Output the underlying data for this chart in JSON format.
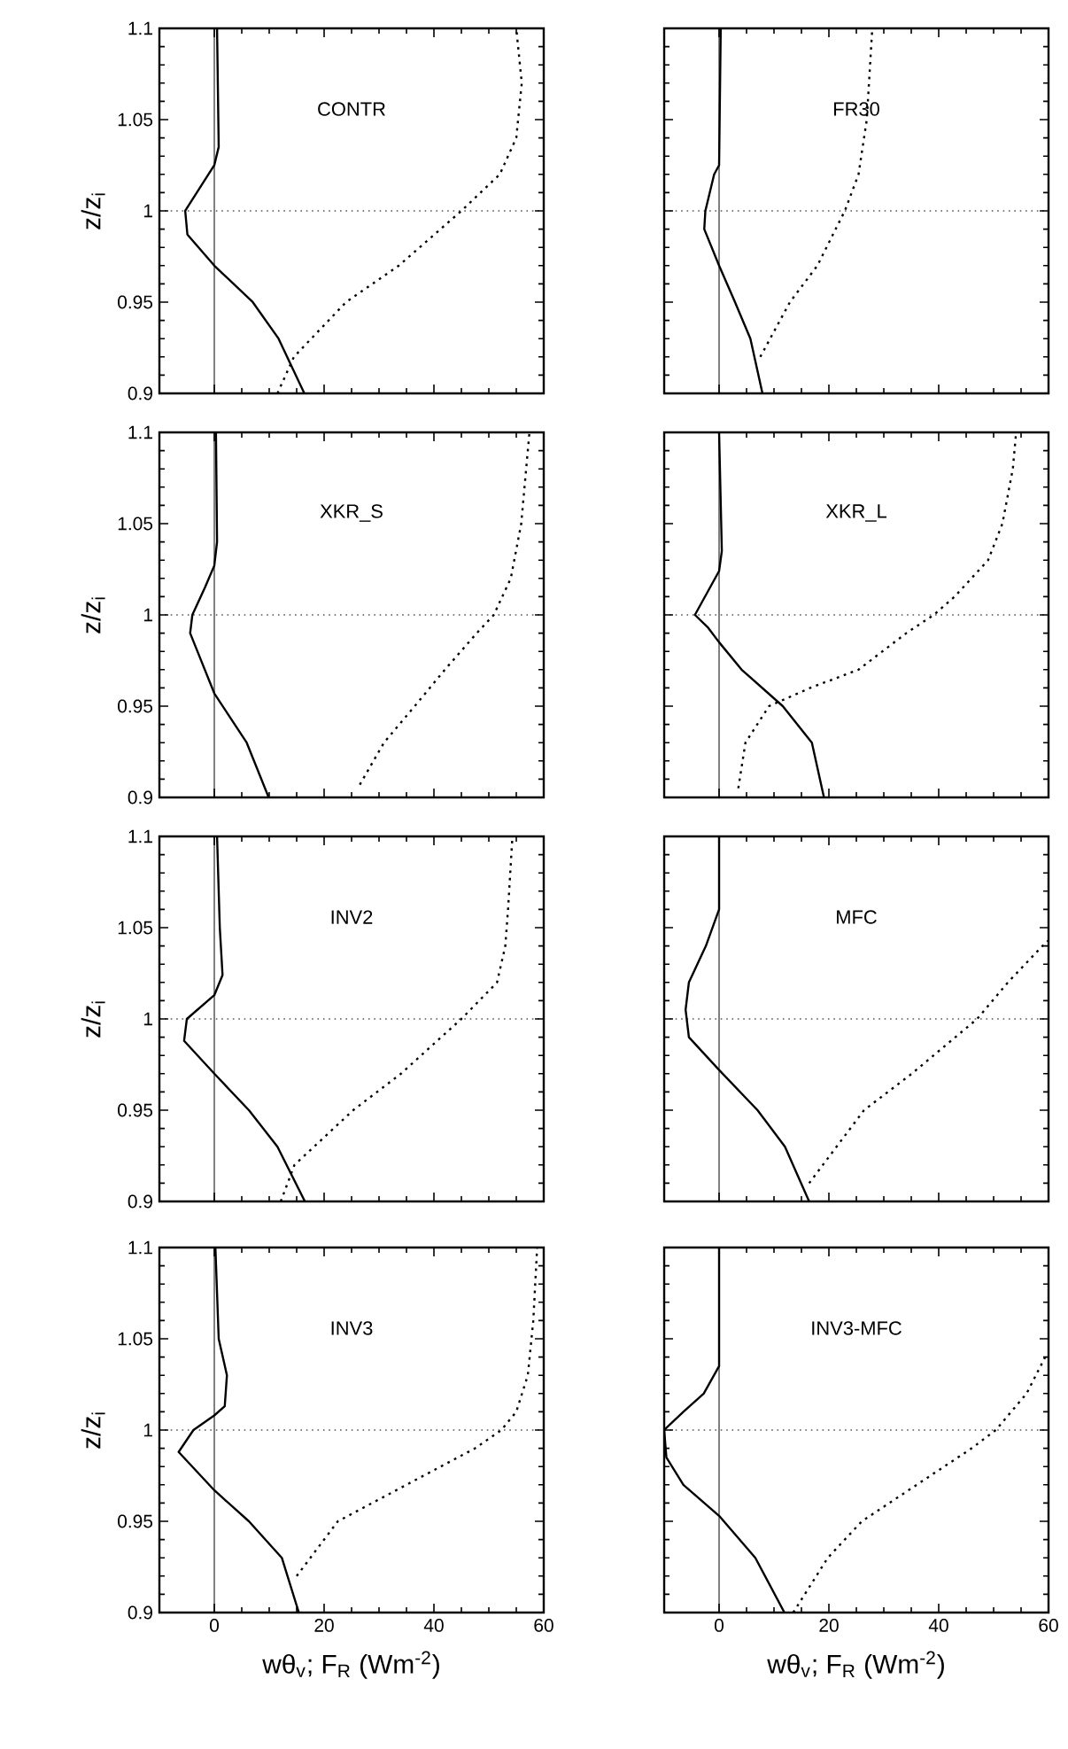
{
  "chart_data": [
    {
      "type": "line",
      "title": "CONTR",
      "ylabel": "z/z$_{i}$",
      "xlim": [
        -10,
        60
      ],
      "ylim": [
        0.9,
        1.1
      ],
      "xticks": [
        0,
        20,
        40,
        60
      ],
      "yticks": [
        0.9,
        0.95,
        1,
        1.05,
        1.1
      ],
      "tick_labels": "y",
      "series": [
        {
          "color": "#000000",
          "line_style": "solid",
          "x": [
            16.4,
            11.7,
            7,
            0,
            -4.9,
            -5.3,
            0,
            0.8,
            0.5
          ],
          "values": [
            0.9,
            0.93,
            0.95,
            0.97,
            0.987,
            1.0,
            1.025,
            1.035,
            1.1
          ]
        },
        {
          "color": "#000000",
          "line_style": "dotted",
          "x": [
            11.5,
            14.5,
            24,
            33.6,
            45,
            52,
            55,
            56,
            55
          ],
          "values": [
            0.9,
            0.92,
            0.95,
            0.97,
            1.0,
            1.02,
            1.04,
            1.07,
            1.1
          ]
        }
      ],
      "ref_lines": [
        {
          "axis": "x",
          "value": 0,
          "line_style": "solid"
        },
        {
          "axis": "y",
          "value": 1,
          "line_style": "dotted"
        }
      ]
    },
    {
      "type": "line",
      "title": "FR30",
      "xlim": [
        -10,
        60
      ],
      "ylim": [
        0.9,
        1.1
      ],
      "xticks": [
        0,
        20,
        40,
        60
      ],
      "yticks": [
        0.9,
        0.95,
        1,
        1.05,
        1.1
      ],
      "tick_labels": false,
      "series": [
        {
          "color": "#000000",
          "line_style": "solid",
          "x": [
            7.9,
            5.7,
            2.9,
            0,
            -2.7,
            -2.5,
            -0.9,
            0,
            0.3
          ],
          "values": [
            0.9,
            0.93,
            0.95,
            0.97,
            0.99,
            1.0,
            1.02,
            1.025,
            1.1
          ]
        },
        {
          "color": "#000000",
          "line_style": "dotted",
          "x": [
            7.5,
            12.9,
            17.9,
            22.9,
            25.4,
            26.9,
            27.9
          ],
          "values": [
            0.92,
            0.95,
            0.97,
            1.0,
            1.02,
            1.05,
            1.1
          ]
        }
      ],
      "ref_lines": [
        {
          "axis": "x",
          "value": 0,
          "line_style": "solid"
        },
        {
          "axis": "y",
          "value": 1,
          "line_style": "dotted"
        }
      ]
    },
    {
      "type": "line",
      "title": "XKR_S",
      "ylabel": "z/z$_{i}$",
      "xlim": [
        -10,
        60
      ],
      "ylim": [
        0.9,
        1.1
      ],
      "xticks": [
        0,
        20,
        40,
        60
      ],
      "yticks": [
        0.9,
        0.95,
        1,
        1.05,
        1.1
      ],
      "tick_labels": "y",
      "series": [
        {
          "color": "#000000",
          "line_style": "solid",
          "x": [
            9.9,
            5.9,
            0,
            -4.4,
            -4,
            -1.7,
            0,
            0.5,
            0.3
          ],
          "values": [
            0.9,
            0.93,
            0.957,
            0.99,
            1.0,
            1.015,
            1.027,
            1.04,
            1.1
          ]
        },
        {
          "color": "#000000",
          "line_style": "dotted",
          "x": [
            26.5,
            30.9,
            36.5,
            42,
            47.8,
            50.9,
            54,
            55.9,
            56.8,
            57.4
          ],
          "values": [
            0.907,
            0.93,
            0.95,
            0.97,
            0.99,
            1.0,
            1.02,
            1.05,
            1.08,
            1.1
          ]
        }
      ],
      "ref_lines": [
        {
          "axis": "x",
          "value": 0,
          "line_style": "solid"
        },
        {
          "axis": "y",
          "value": 1,
          "line_style": "dotted"
        }
      ]
    },
    {
      "type": "line",
      "title": "XKR_L",
      "xlim": [
        -10,
        60
      ],
      "ylim": [
        0.9,
        1.1
      ],
      "xticks": [
        0,
        20,
        40,
        60
      ],
      "yticks": [
        0.9,
        0.95,
        1,
        1.05,
        1.1
      ],
      "tick_labels": false,
      "series": [
        {
          "color": "#000000",
          "line_style": "solid",
          "x": [
            19.1,
            16.9,
            11.6,
            4.1,
            0,
            -2,
            -4.4,
            0,
            0.5,
            0
          ],
          "values": [
            0.9,
            0.93,
            0.95,
            0.97,
            0.985,
            0.993,
            1.0,
            1.024,
            1.035,
            1.1
          ]
        },
        {
          "color": "#000000",
          "line_style": "dotted",
          "x": [
            3.5,
            4.8,
            9.1,
            16.6,
            25.4,
            34.1,
            39.1,
            42.9,
            49,
            51.6,
            53.5,
            54.1
          ],
          "values": [
            0.905,
            0.93,
            0.95,
            0.96,
            0.97,
            0.99,
            1.0,
            1.01,
            1.03,
            1.05,
            1.08,
            1.1
          ]
        }
      ],
      "ref_lines": [
        {
          "axis": "x",
          "value": 0,
          "line_style": "solid"
        },
        {
          "axis": "y",
          "value": 1,
          "line_style": "dotted"
        }
      ]
    },
    {
      "type": "line",
      "title": "INV2",
      "ylabel": "z/z$_{i}$",
      "xlim": [
        -10,
        60
      ],
      "ylim": [
        0.9,
        1.1
      ],
      "xticks": [
        0,
        20,
        40,
        60
      ],
      "yticks": [
        0.9,
        0.95,
        1,
        1.05,
        1.1
      ],
      "tick_labels": "y",
      "series": [
        {
          "color": "#000000",
          "line_style": "solid",
          "x": [
            16.5,
            11.5,
            6.3,
            0,
            -5.5,
            -5,
            0,
            1.5,
            1,
            0.5
          ],
          "values": [
            0.9,
            0.93,
            0.95,
            0.97,
            0.988,
            1.0,
            1.013,
            1.024,
            1.05,
            1.1
          ]
        },
        {
          "color": "#000000",
          "line_style": "dotted",
          "x": [
            12.1,
            14.6,
            25.3,
            34,
            45,
            51.5,
            53,
            53.5,
            54.3
          ],
          "values": [
            0.9,
            0.92,
            0.95,
            0.97,
            1.0,
            1.02,
            1.04,
            1.06,
            1.1
          ]
        }
      ],
      "ref_lines": [
        {
          "axis": "x",
          "value": 0,
          "line_style": "solid"
        },
        {
          "axis": "y",
          "value": 1,
          "line_style": "dotted"
        }
      ]
    },
    {
      "type": "line",
      "title": "MFC",
      "xlim": [
        -10,
        60
      ],
      "ylim": [
        0.9,
        1.1
      ],
      "xticks": [
        0,
        20,
        40,
        60
      ],
      "yticks": [
        0.9,
        0.95,
        1,
        1.05,
        1.1
      ],
      "tick_labels": false,
      "series": [
        {
          "color": "#000000",
          "line_style": "solid",
          "x": [
            16.4,
            12,
            7,
            0,
            -5.5,
            -6.1,
            -5.5,
            -2.4,
            0,
            0
          ],
          "values": [
            0.9,
            0.93,
            0.95,
            0.972,
            0.99,
            1.005,
            1.02,
            1.04,
            1.06,
            1.1
          ]
        },
        {
          "color": "#000000",
          "line_style": "dotted",
          "x": [
            16.4,
            26.4,
            35.1,
            47,
            52.6,
            58.9,
            60
          ],
          "values": [
            0.91,
            0.95,
            0.97,
            1.0,
            1.02,
            1.04,
            1.043
          ]
        }
      ],
      "ref_lines": [
        {
          "axis": "x",
          "value": 0,
          "line_style": "solid"
        },
        {
          "axis": "y",
          "value": 1,
          "line_style": "dotted"
        }
      ]
    },
    {
      "type": "line",
      "title": "INV3",
      "xlabel": "wθ$_{v}$; F$_{R}$ (Wm$^{-2}$)",
      "ylabel": "z/z$_{i}$",
      "xlim": [
        -10,
        60
      ],
      "ylim": [
        0.9,
        1.1
      ],
      "xticks": [
        0,
        20,
        40,
        60
      ],
      "yticks": [
        0.9,
        0.95,
        1,
        1.05,
        1.1
      ],
      "series": [
        {
          "color": "#000000",
          "line_style": "solid",
          "x": [
            15.4,
            12.3,
            6.3,
            0,
            -6.5,
            -3.8,
            0,
            1.9,
            2.3,
            0.8,
            0.2
          ],
          "values": [
            0.9,
            0.93,
            0.95,
            0.967,
            0.988,
            1.0,
            1.008,
            1.013,
            1.03,
            1.05,
            1.1
          ]
        },
        {
          "color": "#000000",
          "line_style": "dotted",
          "x": [
            15,
            22.5,
            35,
            47.5,
            52.3,
            55,
            57.1,
            58.1,
            58.8
          ],
          "values": [
            0.92,
            0.95,
            0.97,
            0.99,
            1.0,
            1.01,
            1.03,
            1.06,
            1.1
          ]
        }
      ],
      "ref_lines": [
        {
          "axis": "x",
          "value": 0,
          "line_style": "solid"
        },
        {
          "axis": "y",
          "value": 1,
          "line_style": "dotted"
        }
      ]
    },
    {
      "type": "line",
      "title": "INV3-MFC",
      "xlabel": "wθ$_{v}$; F$_{R}$ (Wm$^{-2}$)",
      "xlim": [
        -10,
        60
      ],
      "ylim": [
        0.9,
        1.1
      ],
      "xticks": [
        0,
        20,
        40,
        60
      ],
      "yticks": [
        0.9,
        0.95,
        1,
        1.05,
        1.1
      ],
      "tick_labels": "x",
      "series": [
        {
          "color": "#000000",
          "line_style": "solid",
          "x": [
            11.9,
            6.6,
            0,
            -6.5,
            -9.6,
            -10,
            -6.5,
            -2.8,
            0,
            0
          ],
          "values": [
            0.9,
            0.93,
            0.953,
            0.97,
            0.985,
            1.0,
            1.01,
            1.02,
            1.035,
            1.1
          ]
        },
        {
          "color": "#000000",
          "line_style": "dotted",
          "x": [
            13.5,
            19.8,
            26,
            36,
            46,
            50.4,
            56,
            59.4
          ],
          "values": [
            0.9,
            0.93,
            0.95,
            0.97,
            0.99,
            1.0,
            1.02,
            1.04
          ]
        }
      ],
      "ref_lines": [
        {
          "axis": "x",
          "value": 0,
          "line_style": "solid"
        },
        {
          "axis": "y",
          "value": 1,
          "line_style": "dotted"
        }
      ]
    }
  ]
}
